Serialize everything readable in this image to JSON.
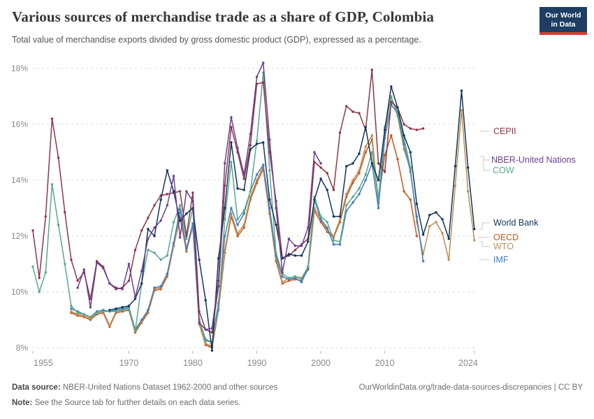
{
  "header": {
    "title": "Various sources of merchandise trade as a share of GDP, Colombia",
    "subtitle": "Total value of merchandise exports divided by gross domestic product (GDP), expressed as a percentage.",
    "logo_line1": "Our World",
    "logo_line2": "in Data"
  },
  "chart_data": {
    "type": "line",
    "title": "Various sources of merchandise trade as a share of GDP, Colombia",
    "xlabel": "",
    "ylabel": "",
    "grid": "dashed horizontal",
    "legend_position": "right",
    "ylim": [
      7.6,
      18.5
    ],
    "xlim": [
      1955,
      2024
    ],
    "y_ticks": [
      {
        "label": "8%",
        "value": 8
      },
      {
        "label": "10%",
        "value": 10
      },
      {
        "label": "12%",
        "value": 12
      },
      {
        "label": "14%",
        "value": 14
      },
      {
        "label": "16%",
        "value": 16
      },
      {
        "label": "18%",
        "value": 18
      }
    ],
    "x_ticks": [
      {
        "label": "1955",
        "value": 1955
      },
      {
        "label": "1970",
        "value": 1970
      },
      {
        "label": "1980",
        "value": 1980
      },
      {
        "label": "1990",
        "value": 1990
      },
      {
        "label": "2000",
        "value": 2000
      },
      {
        "label": "2010",
        "value": 2010
      },
      {
        "label": "2024",
        "value": 2024
      }
    ],
    "series": [
      {
        "name": "OECD",
        "color": "#c4591c",
        "start_year": 1961,
        "values": [
          9.25,
          9.15,
          9.1,
          9.0,
          9.2,
          9.25,
          8.75,
          9.25,
          9.3,
          9.35,
          8.55,
          8.9,
          9.25,
          10.05,
          10.1,
          10.55,
          11.65,
          12.65,
          11.45,
          12.35,
          8.85,
          8.1,
          8.0,
          9.35,
          11.4,
          12.7,
          12.0,
          12.3,
          13.3,
          13.9,
          14.4,
          12.8,
          11.1,
          10.3,
          10.4,
          10.45,
          10.4,
          10.8,
          12.9,
          12.5,
          12.15,
          11.95,
          12.5,
          13.4,
          13.9,
          14.25,
          15.0,
          15.45,
          13.3,
          14.9,
          15.6,
          14.75,
          13.6,
          13.3,
          12.0
        ]
      },
      {
        "name": "WTO",
        "color": "#bc8e55",
        "start_year": 1961,
        "values": [
          9.3,
          9.2,
          9.15,
          9.05,
          9.25,
          9.3,
          8.8,
          9.3,
          9.35,
          9.4,
          8.6,
          8.95,
          9.3,
          10.1,
          10.15,
          10.6,
          11.7,
          12.7,
          11.5,
          12.4,
          8.9,
          8.15,
          8.05,
          9.5,
          11.5,
          12.8,
          12.1,
          12.4,
          13.4,
          14.0,
          14.5,
          12.9,
          11.2,
          10.35,
          10.5,
          10.55,
          10.5,
          10.9,
          13.0,
          12.6,
          12.2,
          12.0,
          12.6,
          13.5,
          14.0,
          14.35,
          15.2,
          15.6,
          13.2,
          15.7,
          17.0,
          16.3,
          15.1,
          14.4,
          12.5,
          11.35,
          12.35,
          12.5,
          12.1,
          11.15,
          13.8,
          16.5,
          13.6,
          11.85
        ]
      },
      {
        "name": "IMF",
        "color": "#3d7dc1",
        "start_year": 1961,
        "values": [
          9.4,
          9.3,
          9.2,
          9.1,
          9.3,
          9.35,
          9.3,
          9.35,
          9.4,
          9.45,
          8.65,
          9.0,
          9.35,
          10.15,
          10.2,
          10.65,
          11.75,
          12.95,
          11.55,
          12.45,
          9.0,
          8.3,
          8.2,
          9.6,
          12.0,
          13.0,
          12.4,
          12.8,
          13.6,
          14.2,
          14.55,
          13.0,
          11.3,
          10.55,
          10.45,
          10.5,
          10.35,
          10.85,
          13.3,
          12.6,
          12.3,
          11.7,
          11.7,
          12.9,
          13.2,
          13.5,
          14.0,
          14.6,
          13.0,
          15.5,
          16.7,
          16.4,
          15.3,
          14.3,
          12.7,
          11.1
        ]
      },
      {
        "name": "COW",
        "color": "#58a88c",
        "start_year": 1955,
        "values": [
          10.9,
          10.0,
          10.7,
          13.85,
          12.4,
          11.0,
          9.5,
          9.25,
          9.2,
          9.1,
          9.25,
          9.3,
          9.3,
          9.3,
          9.35,
          9.4,
          8.6,
          10.3,
          11.5,
          11.4,
          11.15,
          11.3,
          12.5,
          13.1,
          11.9,
          13.0,
          9.0,
          8.25,
          8.2,
          9.4,
          12.6,
          14.65,
          12.6,
          12.9,
          13.6,
          15.4,
          17.85,
          14.35,
          11.4,
          10.65,
          10.5,
          10.55,
          10.45,
          10.9,
          13.4,
          12.7,
          12.5,
          11.85,
          11.8,
          13.1,
          13.4,
          13.7,
          14.2,
          15.0,
          13.3,
          15.9,
          16.95,
          16.45,
          15.5,
          14.45
        ]
      },
      {
        "name": "CEPII",
        "color": "#8e3745",
        "start_year": 1955,
        "values": [
          12.2,
          10.5,
          12.7,
          16.2,
          14.8,
          12.85,
          11.15,
          10.4,
          10.7,
          9.75,
          11.1,
          10.9,
          10.3,
          10.1,
          10.15,
          10.4,
          11.5,
          12.2,
          12.65,
          13.1,
          13.45,
          13.5,
          13.55,
          13.6,
          12.0,
          13.55,
          9.3,
          8.65,
          8.55,
          10.2,
          13.8,
          15.9,
          15.0,
          14.05,
          15.25,
          17.45,
          17.5,
          15.0,
          13.25,
          11.2,
          11.3,
          11.5,
          11.7,
          11.9,
          14.65,
          14.45,
          14.25,
          13.65,
          15.7,
          16.65,
          16.45,
          16.4,
          15.8,
          17.95,
          14.6,
          14.3,
          16.8,
          16.6,
          16.0,
          15.85,
          15.8,
          15.85
        ]
      },
      {
        "name": "World Bank",
        "color": "#11355e",
        "start_year": 1967,
        "values": [
          9.35,
          9.4,
          9.45,
          9.5,
          9.75,
          10.3,
          12.25,
          12.0,
          13.3,
          14.35,
          13.6,
          12.55,
          12.8,
          13.0,
          11.15,
          9.7,
          7.9,
          11.2,
          13.0,
          15.35,
          13.7,
          13.65,
          15.1,
          15.3,
          15.35,
          13.3,
          12.4,
          11.2,
          11.35,
          11.3,
          11.3,
          11.8,
          13.3,
          14.05,
          13.65,
          12.7,
          12.7,
          14.5,
          14.6,
          14.95,
          15.9,
          14.6,
          14.0,
          15.8,
          17.35,
          16.6,
          15.6,
          15.0,
          13.15,
          12.05,
          12.75,
          12.85,
          12.6,
          11.9,
          14.5,
          17.2,
          14.45,
          12.25
        ]
      },
      {
        "name": "NBER-United Nations",
        "color": "#6d3e91",
        "start_year": 1962,
        "values": [
          10.15,
          10.8,
          9.45,
          11.05,
          10.85,
          10.3,
          10.15,
          10.1,
          11.0,
          9.8,
          10.75,
          11.9,
          12.3,
          12.55,
          13.1,
          14.15,
          11.95,
          13.6,
          13.25,
          8.9,
          8.65,
          8.7,
          10.4,
          14.6,
          16.25,
          15.15,
          14.2,
          15.65,
          17.7,
          18.2,
          15.45,
          13.0,
          10.7,
          11.9,
          11.65,
          11.65,
          12.3,
          15.0,
          14.6
        ]
      }
    ]
  },
  "legend": {
    "items": [
      "CEPII",
      "NBER-United Nations",
      "COW",
      "World Bank",
      "OECD",
      "WTO",
      "IMF"
    ]
  },
  "footer": {
    "datasource_label": "Data source:",
    "datasource_text": " NBER-United Nations Dataset 1962-2000 and other sources",
    "link_text": "OurWorldinData.org/trade-data-sources-discrepancies | CC BY",
    "note_label": "Note:",
    "note_text": " See the Source tab for further details on each data series."
  }
}
